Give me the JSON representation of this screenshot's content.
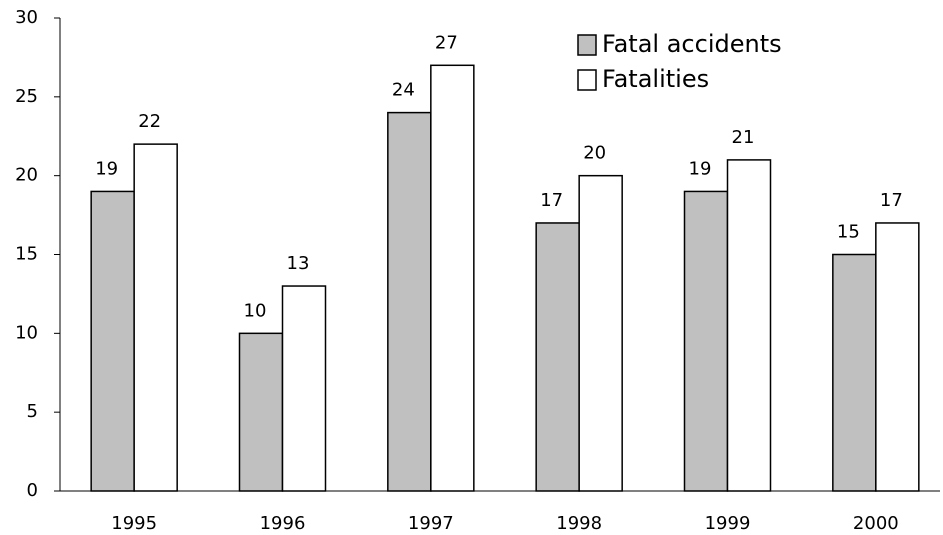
{
  "chart_data": {
    "type": "bar",
    "categories": [
      "1995",
      "1996",
      "1997",
      "1998",
      "1999",
      "2000"
    ],
    "series": [
      {
        "name": "Fatal accidents",
        "color": "#c0c0c0",
        "values": [
          19,
          10,
          24,
          17,
          19,
          15
        ]
      },
      {
        "name": "Fatalities",
        "color": "#ffffff",
        "values": [
          22,
          13,
          27,
          20,
          21,
          17
        ]
      }
    ],
    "ylim": [
      0,
      30
    ],
    "yticks": [
      0,
      5,
      10,
      15,
      20,
      25,
      30
    ],
    "grid": false,
    "legend": "top-right"
  }
}
